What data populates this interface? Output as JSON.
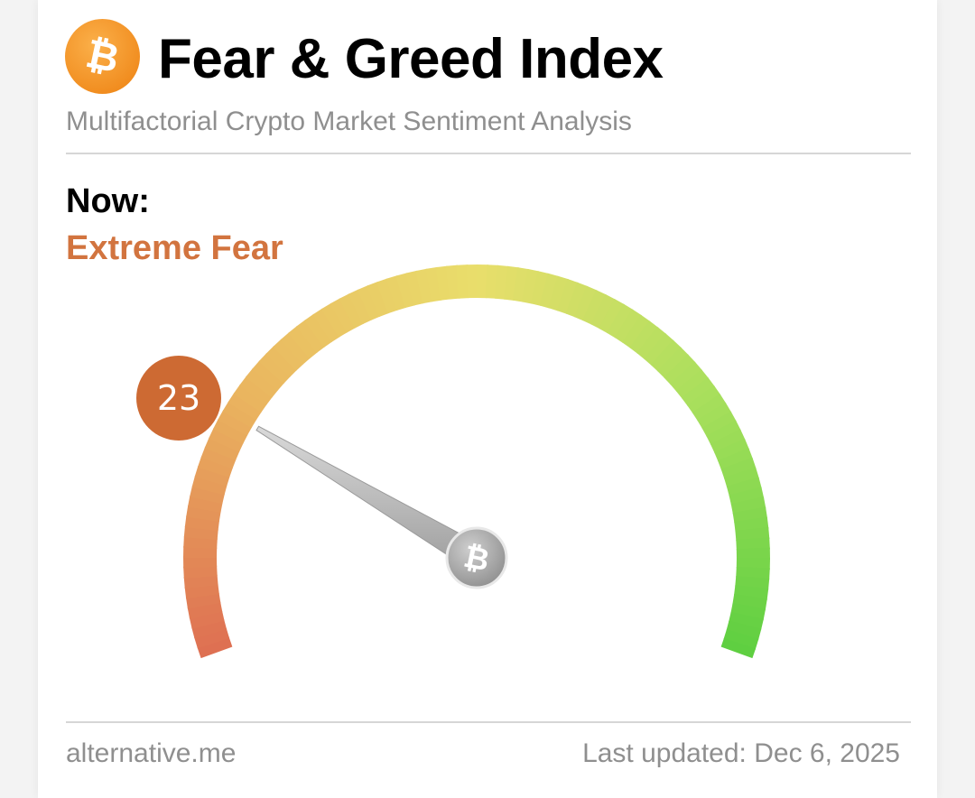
{
  "header": {
    "title": "Fear & Greed Index",
    "subtitle": "Multifactorial Crypto Market Sentiment Analysis",
    "icon": "bitcoin-icon",
    "icon_color": "#f7931a"
  },
  "now": {
    "label": "Now:",
    "classification": "Extreme Fear",
    "classification_color": "#d2743f"
  },
  "gauge": {
    "value": 23,
    "min": 0,
    "max": 100,
    "badge_color": "#cd6a33",
    "scale_colors": [
      "#de6f52",
      "#eab55f",
      "#e9de6b",
      "#a8df5c",
      "#5ecf40"
    ]
  },
  "footer": {
    "source": "alternative.me",
    "last_updated": "Last updated: Dec 6, 2025"
  }
}
